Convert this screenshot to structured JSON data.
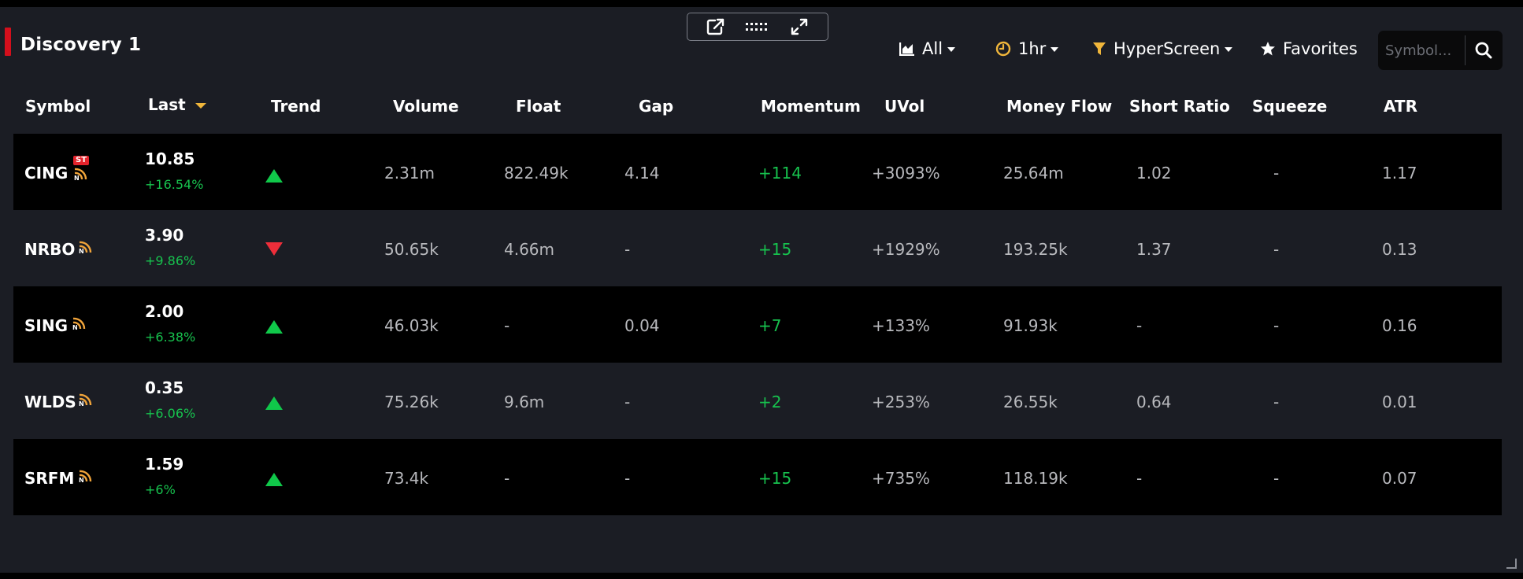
{
  "panel": {
    "title": "Discovery 1"
  },
  "toolbar": {
    "chart_filter": "All",
    "timeframe": "1hr",
    "screen": "HyperScreen",
    "favorites": "Favorites",
    "search_placeholder": "Symbol..."
  },
  "columns": [
    {
      "key": "symbol",
      "label": "Symbol"
    },
    {
      "key": "last",
      "label": "Last"
    },
    {
      "key": "trend",
      "label": "Trend"
    },
    {
      "key": "volume",
      "label": "Volume"
    },
    {
      "key": "float",
      "label": "Float"
    },
    {
      "key": "gap",
      "label": "Gap"
    },
    {
      "key": "momentum",
      "label": "Momentum"
    },
    {
      "key": "uvol",
      "label": "UVol"
    },
    {
      "key": "money_flow",
      "label": "Money Flow"
    },
    {
      "key": "short_ratio",
      "label": "Short Ratio"
    },
    {
      "key": "squeeze",
      "label": "Squeeze"
    },
    {
      "key": "atr",
      "label": "ATR"
    }
  ],
  "rows": [
    {
      "symbol": "CING",
      "st_badge": "ST",
      "last": "10.85",
      "change": "+16.54%",
      "trend": "up",
      "volume": "2.31m",
      "float": "822.49k",
      "gap": "4.14",
      "momentum": "+114",
      "uvol": "+3093%",
      "money_flow": "25.64m",
      "short_ratio": "1.02",
      "squeeze": "-",
      "atr": "1.17"
    },
    {
      "symbol": "NRBO",
      "st_badge": "",
      "last": "3.90",
      "change": "+9.86%",
      "trend": "down",
      "volume": "50.65k",
      "float": "4.66m",
      "gap": "-",
      "momentum": "+15",
      "uvol": "+1929%",
      "money_flow": "193.25k",
      "short_ratio": "1.37",
      "squeeze": "-",
      "atr": "0.13"
    },
    {
      "symbol": "SING",
      "st_badge": "",
      "last": "2.00",
      "change": "+6.38%",
      "trend": "up",
      "volume": "46.03k",
      "float": "-",
      "gap": "0.04",
      "momentum": "+7",
      "uvol": "+133%",
      "money_flow": "91.93k",
      "short_ratio": "-",
      "squeeze": "-",
      "atr": "0.16"
    },
    {
      "symbol": "WLDS",
      "st_badge": "",
      "last": "0.35",
      "change": "+6.06%",
      "trend": "up",
      "volume": "75.26k",
      "float": "9.6m",
      "gap": "-",
      "momentum": "+2",
      "uvol": "+253%",
      "money_flow": "26.55k",
      "short_ratio": "0.64",
      "squeeze": "-",
      "atr": "0.01"
    },
    {
      "symbol": "SRFM",
      "st_badge": "",
      "last": "1.59",
      "change": "+6%",
      "trend": "up",
      "volume": "73.4k",
      "float": "-",
      "gap": "-",
      "momentum": "+15",
      "uvol": "+735%",
      "money_flow": "118.19k",
      "short_ratio": "-",
      "squeeze": "-",
      "atr": "0.07"
    }
  ],
  "colors": {
    "accent_red": "#d40f1c",
    "positive": "#17c24e",
    "negative": "#ee2e3a",
    "news_icon": "#f0a43a",
    "sort_caret": "#f0b63b",
    "clock_icon": "#f0b63b",
    "filter_icon": "#f0b63b"
  },
  "icons": {
    "popout": "external-link-icon",
    "drag": "drag-handle-icon",
    "expand": "expand-icon",
    "chart": "chart-area-icon",
    "clock": "clock-icon",
    "filter": "filter-icon",
    "star": "star-icon",
    "search": "search-icon",
    "news": "news-rss-icon"
  }
}
